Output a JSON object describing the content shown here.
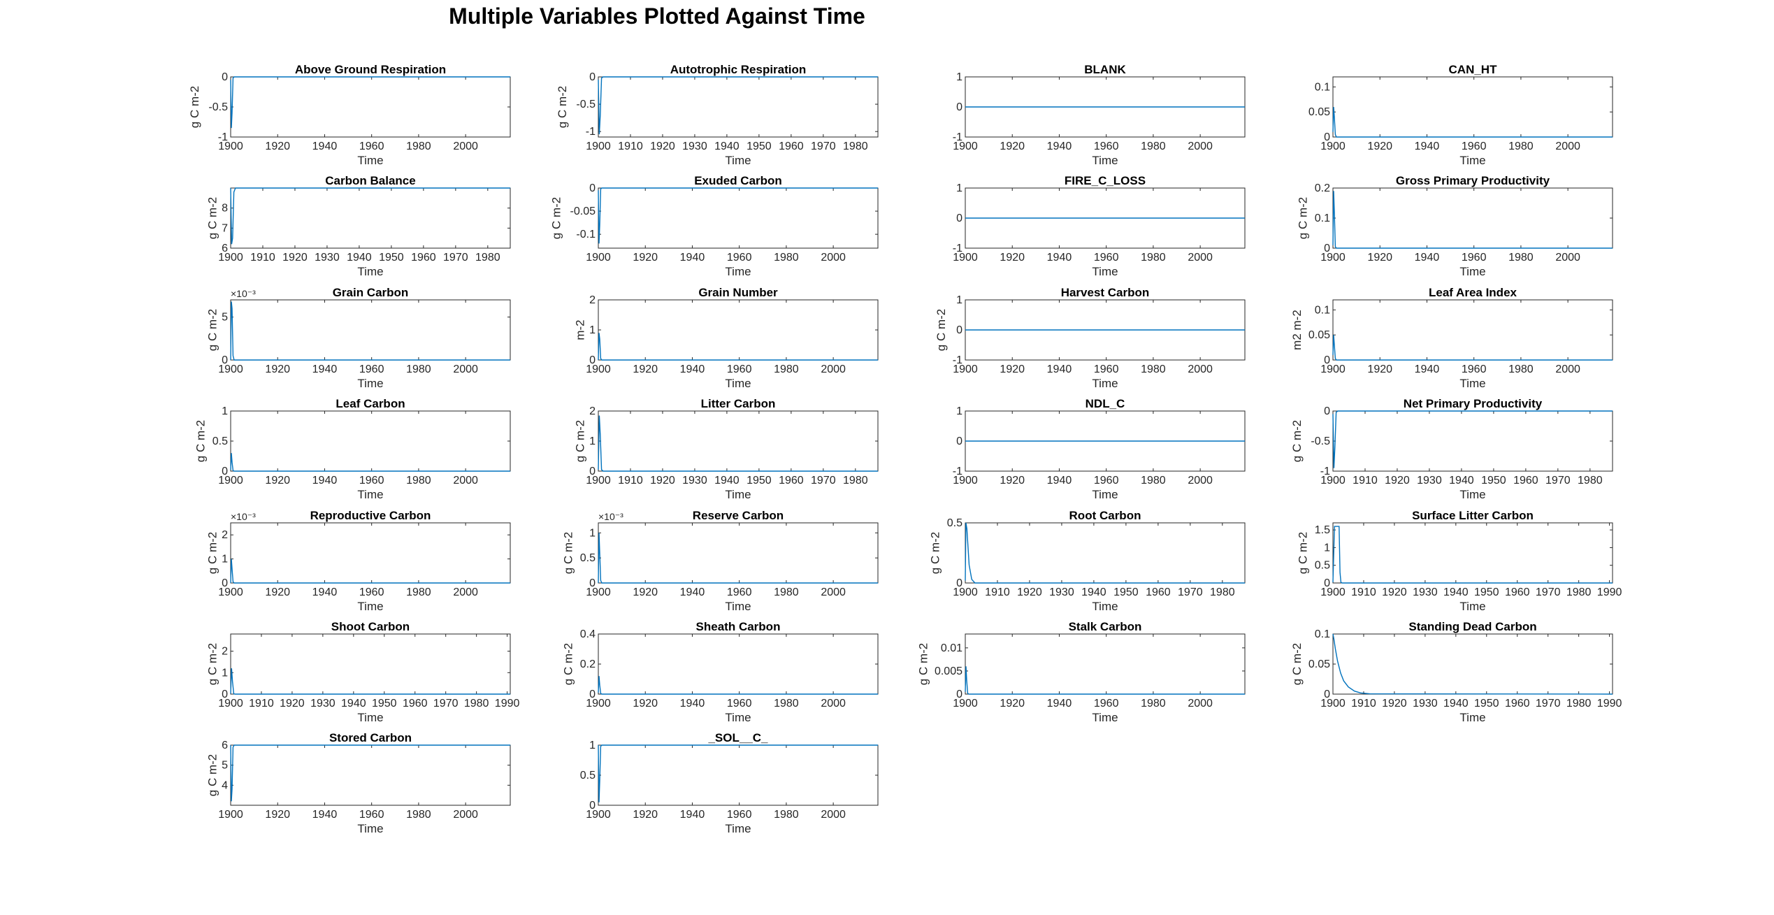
{
  "figure": {
    "title": "Multiple Variables Plotted Against Time",
    "line_color": "#0072BD"
  },
  "chart_data": [
    {
      "type": "line",
      "title": "Above Ground Respiration",
      "ylabel": "g C m-2",
      "xlabel": "Time",
      "xlim": [
        1900,
        2019
      ],
      "ylim": [
        -1,
        0
      ],
      "xticks": [
        1900,
        1920,
        1940,
        1960,
        1980,
        2000
      ],
      "yticks": [
        -1,
        -0.5,
        0
      ],
      "series": [
        {
          "x": [
            1900,
            1900.3,
            1900.6,
            1901,
            1901.5,
            2019
          ],
          "y": [
            -0.05,
            -0.85,
            -0.6,
            -0.02,
            0,
            0
          ]
        }
      ]
    },
    {
      "type": "line",
      "title": "Autotrophic Respiration",
      "ylabel": "g C m-2",
      "xlabel": "Time",
      "xlim": [
        1900,
        1987
      ],
      "ylim": [
        -1.1,
        0
      ],
      "xticks": [
        1900,
        1910,
        1920,
        1930,
        1940,
        1950,
        1960,
        1970,
        1980
      ],
      "yticks": [
        -1,
        -0.5,
        0
      ],
      "series": [
        {
          "x": [
            1900,
            1900.3,
            1900.6,
            1901,
            1901.5,
            1987
          ],
          "y": [
            -0.05,
            -1.05,
            -0.7,
            -0.02,
            0,
            0
          ]
        }
      ]
    },
    {
      "type": "line",
      "title": "BLANK",
      "ylabel": "",
      "xlabel": "Time",
      "xlim": [
        1900,
        2019
      ],
      "ylim": [
        -1,
        1
      ],
      "xticks": [
        1900,
        1920,
        1940,
        1960,
        1980,
        2000
      ],
      "yticks": [
        -1,
        0,
        1
      ],
      "series": [
        {
          "x": [
            1900,
            2019
          ],
          "y": [
            0,
            0
          ]
        }
      ]
    },
    {
      "type": "line",
      "title": "CAN_HT",
      "ylabel": "",
      "xlabel": "Time",
      "xlim": [
        1900,
        2019
      ],
      "ylim": [
        0,
        0.12
      ],
      "xticks": [
        1900,
        1920,
        1940,
        1960,
        1980,
        2000
      ],
      "yticks": [
        0,
        0.05,
        0.1
      ],
      "series": [
        {
          "x": [
            1900,
            1900.3,
            1900.6,
            1901,
            1901.5,
            2019
          ],
          "y": [
            0.01,
            0.06,
            0.04,
            0.005,
            0,
            0
          ]
        }
      ]
    },
    {
      "type": "line",
      "title": "Carbon Balance",
      "ylabel": "g C m-2",
      "xlabel": "Time",
      "xlim": [
        1900,
        1987
      ],
      "ylim": [
        6,
        9
      ],
      "xticks": [
        1900,
        1910,
        1920,
        1930,
        1940,
        1950,
        1960,
        1970,
        1980
      ],
      "yticks": [
        6,
        7,
        8
      ],
      "series": [
        {
          "x": [
            1900,
            1900.3,
            1900.6,
            1901,
            1901.5,
            1987
          ],
          "y": [
            9,
            6.2,
            6.5,
            8.8,
            9,
            9
          ]
        }
      ]
    },
    {
      "type": "line",
      "title": "Exuded Carbon",
      "ylabel": "g C m-2",
      "xlabel": "Time",
      "xlim": [
        1900,
        2019
      ],
      "ylim": [
        -0.13,
        0
      ],
      "xticks": [
        1900,
        1920,
        1940,
        1960,
        1980,
        2000
      ],
      "yticks": [
        -0.1,
        -0.05,
        0
      ],
      "series": [
        {
          "x": [
            1900,
            1900.3,
            1900.6,
            1901,
            1901.5,
            2019
          ],
          "y": [
            -0.005,
            -0.12,
            -0.08,
            -0.002,
            0,
            0
          ]
        }
      ]
    },
    {
      "type": "line",
      "title": "FIRE_C_LOSS",
      "ylabel": "",
      "xlabel": "Time",
      "xlim": [
        1900,
        2019
      ],
      "ylim": [
        -1,
        1
      ],
      "xticks": [
        1900,
        1920,
        1940,
        1960,
        1980,
        2000
      ],
      "yticks": [
        -1,
        0,
        1
      ],
      "series": [
        {
          "x": [
            1900,
            2019
          ],
          "y": [
            0,
            0
          ]
        }
      ]
    },
    {
      "type": "line",
      "title": "Gross Primary Productivity",
      "ylabel": "g C m-2",
      "xlabel": "Time",
      "xlim": [
        1900,
        2019
      ],
      "ylim": [
        0,
        0.2
      ],
      "xticks": [
        1900,
        1920,
        1940,
        1960,
        1980,
        2000
      ],
      "yticks": [
        0,
        0.1,
        0.2
      ],
      "series": [
        {
          "x": [
            1900,
            1900.3,
            1900.6,
            1901,
            1901.5,
            2019
          ],
          "y": [
            0.01,
            0.19,
            0.12,
            0.005,
            0,
            0
          ]
        }
      ]
    },
    {
      "type": "line",
      "title": "Grain Carbon",
      "ylabel": "g C m-2",
      "xlabel": "Time",
      "exponent": "×10⁻³",
      "xlim": [
        1900,
        2019
      ],
      "ylim": [
        0,
        7
      ],
      "xticks": [
        1900,
        1920,
        1940,
        1960,
        1980,
        2000
      ],
      "yticks": [
        0,
        5
      ],
      "series": [
        {
          "x": [
            1900,
            1900.3,
            1900.6,
            1901,
            1901.5,
            2019
          ],
          "y": [
            0,
            6.8,
            6,
            0.5,
            0,
            0
          ]
        }
      ]
    },
    {
      "type": "line",
      "title": "Grain Number",
      "ylabel": "m-2",
      "xlabel": "Time",
      "xlim": [
        1900,
        2019
      ],
      "ylim": [
        0,
        2
      ],
      "xticks": [
        1900,
        1920,
        1940,
        1960,
        1980,
        2000
      ],
      "yticks": [
        0,
        1,
        2
      ],
      "series": [
        {
          "x": [
            1900,
            1900.3,
            1900.6,
            1901,
            1901.5,
            2019
          ],
          "y": [
            0,
            0.9,
            0.7,
            0.05,
            0,
            0
          ]
        }
      ]
    },
    {
      "type": "line",
      "title": "Harvest Carbon",
      "ylabel": "g C m-2",
      "xlabel": "Time",
      "xlim": [
        1900,
        2019
      ],
      "ylim": [
        -1,
        1
      ],
      "xticks": [
        1900,
        1920,
        1940,
        1960,
        1980,
        2000
      ],
      "yticks": [
        -1,
        0,
        1
      ],
      "series": [
        {
          "x": [
            1900,
            2019
          ],
          "y": [
            0,
            0
          ]
        }
      ]
    },
    {
      "type": "line",
      "title": "Leaf Area Index",
      "ylabel": "m2 m-2",
      "xlabel": "Time",
      "xlim": [
        1900,
        2019
      ],
      "ylim": [
        0,
        0.12
      ],
      "xticks": [
        1900,
        1920,
        1940,
        1960,
        1980,
        2000
      ],
      "yticks": [
        0,
        0.05,
        0.1
      ],
      "series": [
        {
          "x": [
            1900,
            1900.3,
            1900.6,
            1901,
            1901.5,
            2019
          ],
          "y": [
            0.01,
            0.05,
            0.03,
            0.003,
            0,
            0
          ]
        }
      ]
    },
    {
      "type": "line",
      "title": "Leaf Carbon",
      "ylabel": "g C m-2",
      "xlabel": "Time",
      "xlim": [
        1900,
        2019
      ],
      "ylim": [
        0,
        1
      ],
      "xticks": [
        1900,
        1920,
        1940,
        1960,
        1980,
        2000
      ],
      "yticks": [
        0,
        0.5,
        1
      ],
      "series": [
        {
          "x": [
            1900,
            1900.3,
            1900.6,
            1901,
            1901.5,
            2019
          ],
          "y": [
            0.02,
            0.3,
            0.15,
            0.01,
            0,
            0
          ]
        }
      ]
    },
    {
      "type": "line",
      "title": "Litter Carbon",
      "ylabel": "g C m-2",
      "xlabel": "Time",
      "xlim": [
        1900,
        1987
      ],
      "ylim": [
        0,
        2
      ],
      "xticks": [
        1900,
        1910,
        1920,
        1930,
        1940,
        1950,
        1960,
        1970,
        1980
      ],
      "yticks": [
        0,
        1,
        2
      ],
      "series": [
        {
          "x": [
            1900,
            1900.3,
            1900.6,
            1901,
            1901.5,
            1987
          ],
          "y": [
            0.05,
            1.85,
            1.2,
            0.05,
            0,
            0
          ]
        }
      ]
    },
    {
      "type": "line",
      "title": "NDL_C",
      "ylabel": "",
      "xlabel": "Time",
      "xlim": [
        1900,
        2019
      ],
      "ylim": [
        -1,
        1
      ],
      "xticks": [
        1900,
        1920,
        1940,
        1960,
        1980,
        2000
      ],
      "yticks": [
        -1,
        0,
        1
      ],
      "series": [
        {
          "x": [
            1900,
            2019
          ],
          "y": [
            0,
            0
          ]
        }
      ]
    },
    {
      "type": "line",
      "title": "Net Primary Productivity",
      "ylabel": "g C m-2",
      "xlabel": "Time",
      "xlim": [
        1900,
        1987
      ],
      "ylim": [
        -1,
        0
      ],
      "xticks": [
        1900,
        1910,
        1920,
        1930,
        1940,
        1950,
        1960,
        1970,
        1980
      ],
      "yticks": [
        -1,
        -0.5,
        0
      ],
      "series": [
        {
          "x": [
            1900,
            1900.3,
            1900.6,
            1901,
            1901.5,
            1987
          ],
          "y": [
            -0.05,
            -0.95,
            -0.6,
            -0.02,
            0,
            0
          ]
        }
      ]
    },
    {
      "type": "line",
      "title": "Reproductive Carbon",
      "ylabel": "g C m-2",
      "xlabel": "Time",
      "exponent": "×10⁻³",
      "xlim": [
        1900,
        2019
      ],
      "ylim": [
        0,
        2.5
      ],
      "xticks": [
        1900,
        1920,
        1940,
        1960,
        1980,
        2000
      ],
      "yticks": [
        0,
        1,
        2
      ],
      "series": [
        {
          "x": [
            1900,
            1900.3,
            1900.6,
            1901,
            1901.5,
            2019
          ],
          "y": [
            0,
            1,
            0.6,
            0.05,
            0,
            0
          ]
        }
      ]
    },
    {
      "type": "line",
      "title": "Reserve Carbon",
      "ylabel": "g C m-2",
      "xlabel": "Time",
      "exponent": "×10⁻³",
      "xlim": [
        1900,
        2019
      ],
      "ylim": [
        0,
        1.2
      ],
      "xticks": [
        1900,
        1920,
        1940,
        1960,
        1980,
        2000
      ],
      "yticks": [
        0,
        0.5,
        1
      ],
      "series": [
        {
          "x": [
            1900,
            1900.3,
            1900.6,
            1901,
            1901.5,
            2019
          ],
          "y": [
            0,
            1,
            0.6,
            0.05,
            0,
            0
          ]
        }
      ]
    },
    {
      "type": "line",
      "title": "Root Carbon",
      "ylabel": "g C m-2",
      "xlabel": "Time",
      "xlim": [
        1900,
        1987
      ],
      "ylim": [
        0,
        0.5
      ],
      "xticks": [
        1900,
        1910,
        1920,
        1930,
        1940,
        1950,
        1960,
        1970,
        1980
      ],
      "yticks": [
        0,
        0.5
      ],
      "series": [
        {
          "x": [
            1900,
            1900.2,
            1900.5,
            1900.8,
            1901.2,
            1902,
            1903,
            1987
          ],
          "y": [
            0.02,
            0.5,
            0.45,
            0.32,
            0.15,
            0.03,
            0,
            0
          ]
        }
      ]
    },
    {
      "type": "line",
      "title": "Surface Litter Carbon",
      "ylabel": "g C m-2",
      "xlabel": "Time",
      "xlim": [
        1900,
        1991
      ],
      "ylim": [
        0,
        1.7
      ],
      "xticks": [
        1900,
        1910,
        1920,
        1930,
        1940,
        1950,
        1960,
        1970,
        1980,
        1990
      ],
      "yticks": [
        0,
        0.5,
        1,
        1.5
      ],
      "series": [
        {
          "x": [
            1900,
            1900.5,
            1901,
            1901.5,
            1902,
            1902.3,
            1902.6,
            1903,
            1991
          ],
          "y": [
            0.02,
            1.6,
            1.6,
            1.6,
            1.6,
            0.3,
            0.02,
            0,
            0
          ]
        }
      ]
    },
    {
      "type": "line",
      "title": "Shoot Carbon",
      "ylabel": "g C m-2",
      "xlabel": "Time",
      "xlim": [
        1900,
        1991
      ],
      "ylim": [
        0,
        2.8
      ],
      "xticks": [
        1900,
        1910,
        1920,
        1930,
        1940,
        1950,
        1960,
        1970,
        1980,
        1990
      ],
      "yticks": [
        0,
        1,
        2
      ],
      "series": [
        {
          "x": [
            1900,
            1900.3,
            1900.6,
            1901,
            1901.5,
            1991
          ],
          "y": [
            0.02,
            1.2,
            0.6,
            0.02,
            0,
            0
          ]
        }
      ]
    },
    {
      "type": "line",
      "title": "Sheath Carbon",
      "ylabel": "g C m-2",
      "xlabel": "Time",
      "xlim": [
        1900,
        2019
      ],
      "ylim": [
        0,
        0.4
      ],
      "xticks": [
        1900,
        1920,
        1940,
        1960,
        1980,
        2000
      ],
      "yticks": [
        0,
        0.2,
        0.4
      ],
      "series": [
        {
          "x": [
            1900,
            1900.3,
            1900.6,
            1901,
            1901.5,
            2019
          ],
          "y": [
            0.01,
            0.12,
            0.06,
            0.005,
            0,
            0
          ]
        }
      ]
    },
    {
      "type": "line",
      "title": "Stalk Carbon",
      "ylabel": "g C m-2",
      "xlabel": "Time",
      "xlim": [
        1900,
        2019
      ],
      "ylim": [
        0,
        0.013
      ],
      "xticks": [
        1900,
        1920,
        1940,
        1960,
        1980,
        2000
      ],
      "yticks": [
        0,
        0.005,
        0.01
      ],
      "series": [
        {
          "x": [
            1900,
            1900.3,
            1900.6,
            1901,
            1901.5,
            2019
          ],
          "y": [
            0.0005,
            0.006,
            0.003,
            0.0002,
            0,
            0
          ]
        }
      ]
    },
    {
      "type": "line",
      "title": "Standing Dead Carbon",
      "ylabel": "g C m-2",
      "xlabel": "Time",
      "xlim": [
        1900,
        1991
      ],
      "ylim": [
        0,
        0.1
      ],
      "xticks": [
        1900,
        1910,
        1920,
        1930,
        1940,
        1950,
        1960,
        1970,
        1980,
        1990
      ],
      "yticks": [
        0,
        0.05,
        0.1
      ],
      "series": [
        {
          "x": [
            1900,
            1900.3,
            1900.8,
            1901.5,
            1902.5,
            1903.5,
            1905,
            1907,
            1909,
            1912,
            1991
          ],
          "y": [
            0.1,
            0.092,
            0.075,
            0.055,
            0.035,
            0.022,
            0.012,
            0.005,
            0.002,
            0.0005,
            0
          ]
        }
      ]
    },
    {
      "type": "line",
      "title": "Stored Carbon",
      "ylabel": "g C m-2",
      "xlabel": "Time",
      "xlim": [
        1900,
        2019
      ],
      "ylim": [
        3,
        6
      ],
      "xticks": [
        1900,
        1920,
        1940,
        1960,
        1980,
        2000
      ],
      "yticks": [
        4,
        5,
        6
      ],
      "series": [
        {
          "x": [
            1900,
            1900.3,
            1900.6,
            1901,
            1901.5,
            2019
          ],
          "y": [
            6,
            3.2,
            3.8,
            5.9,
            6,
            6
          ]
        }
      ]
    },
    {
      "type": "line",
      "title": "_SOL__C_",
      "ylabel": "",
      "xlabel": "Time",
      "xlim": [
        1900,
        2019
      ],
      "ylim": [
        0,
        1
      ],
      "xticks": [
        1900,
        1920,
        1940,
        1960,
        1980,
        2000
      ],
      "yticks": [
        0,
        0.5,
        1
      ],
      "series": [
        {
          "x": [
            1900,
            1900.3,
            1900.6,
            1901,
            1901.5,
            2019
          ],
          "y": [
            1,
            0.05,
            0.4,
            0.98,
            1,
            1
          ]
        }
      ]
    }
  ]
}
